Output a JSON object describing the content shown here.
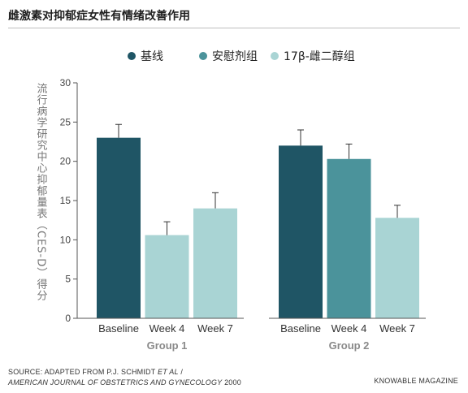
{
  "header": {
    "title": "雌激素对抑郁症女性有情绪改善作用"
  },
  "colors": {
    "baseline": "#1f5565",
    "placebo": "#4b939b",
    "estradiol": "#a9d4d4",
    "axis": "#555555",
    "text": "#444444",
    "group_label": "#8a8a8a"
  },
  "chart_data": {
    "type": "bar",
    "title": "",
    "ylabel": "流行病学研究中心抑郁量表（CES-D）得分",
    "ylim": [
      0,
      30
    ],
    "yticks": [
      0,
      5,
      10,
      15,
      20,
      25,
      30
    ],
    "legend": {
      "placement": "top",
      "entries": [
        {
          "label": "基线",
          "color": "#1f5565"
        },
        {
          "label": "安慰剂组",
          "color": "#4b939b"
        },
        {
          "label": "17β-雌二醇组",
          "color": "#a9d4d4"
        }
      ]
    },
    "groups": [
      {
        "name": "Group 1",
        "bars": [
          {
            "label": "Baseline",
            "value": 23.0,
            "error": 1.7,
            "color": "#1f5565"
          },
          {
            "label": "Week 4",
            "value": 10.6,
            "error": 1.7,
            "color": "#a9d4d4"
          },
          {
            "label": "Week 7",
            "value": 14.0,
            "error": 2.0,
            "color": "#a9d4d4"
          }
        ]
      },
      {
        "name": "Group 2",
        "bars": [
          {
            "label": "Baseline",
            "value": 22.0,
            "error": 2.0,
            "color": "#1f5565"
          },
          {
            "label": "Week 4",
            "value": 20.3,
            "error": 1.9,
            "color": "#4b939b"
          },
          {
            "label": "Week 7",
            "value": 12.8,
            "error": 1.6,
            "color": "#a9d4d4"
          }
        ]
      }
    ]
  },
  "footer": {
    "source_prefix": "SOURCE: ADAPTED FROM P.J. SCHMIDT ",
    "source_etal": "ET AL",
    "source_sep": " /",
    "journal": "AMERICAN JOURNAL OF OBSTETRICS AND GYNECOLOGY",
    "year": " 2000",
    "brand": "KNOWABLE MAGAZINE"
  }
}
